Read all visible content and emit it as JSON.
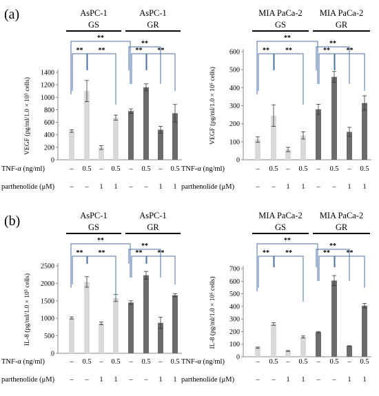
{
  "panels": [
    {
      "letter": "(a)",
      "row_labels": [
        "TNF-α (ng/ml)",
        "parthenolide (μM)"
      ],
      "condition_row1": [
        "–",
        "0.5",
        "–",
        "0.5"
      ],
      "condition_row2": [
        "–",
        "–",
        "1",
        "1"
      ]
    },
    {
      "letter": "(b)",
      "row_labels": [
        "TNF-α (ng/ml)",
        "parthenolide (μM)"
      ],
      "condition_row1": [
        "–",
        "0.5",
        "–",
        "0.5"
      ],
      "condition_row2": [
        "–",
        "–",
        "1",
        "1"
      ]
    }
  ],
  "significance_label": "**",
  "colors": {
    "GS": "#d9d9d9",
    "GR": "#6b6b6b",
    "bracket": "#4a6fa5"
  },
  "chart_data": [
    {
      "type": "bar",
      "panel": "(a)",
      "cell_line_labels": [
        "AsPC-1",
        "AsPC-1"
      ],
      "group_labels": [
        "GS",
        "GR"
      ],
      "ylabel": "VEGF (pg/ml/1.0 × 10⁵ cells)",
      "ylim": [
        0,
        1400
      ],
      "yticks": [
        0,
        200,
        400,
        600,
        800,
        1000,
        1200,
        1400
      ],
      "series": [
        {
          "name": "GS",
          "values": [
            460,
            1100,
            195,
            675
          ],
          "errors": [
            20,
            170,
            30,
            40
          ]
        },
        {
          "name": "GR",
          "values": [
            780,
            1160,
            480,
            745
          ],
          "errors": [
            35,
            55,
            55,
            140
          ]
        }
      ]
    },
    {
      "type": "bar",
      "panel": "(a)",
      "cell_line_labels": [
        "MIA PaCa-2",
        "MIA PaCa-2"
      ],
      "group_labels": [
        "GS",
        "GR"
      ],
      "ylabel": "VEGF (pg/ml/1.0 × 10⁵ cells)",
      "ylim": [
        0,
        600
      ],
      "yticks": [
        0,
        100,
        200,
        300,
        400,
        500,
        600
      ],
      "series": [
        {
          "name": "GS",
          "values": [
            112,
            245,
            57,
            135
          ],
          "errors": [
            15,
            60,
            12,
            20
          ]
        },
        {
          "name": "GR",
          "values": [
            280,
            460,
            155,
            315
          ],
          "errors": [
            28,
            30,
            25,
            40
          ]
        }
      ]
    },
    {
      "type": "bar",
      "panel": "(b)",
      "cell_line_labels": [
        "AsPC-1",
        "AsPC-1"
      ],
      "group_labels": [
        "GS",
        "GR"
      ],
      "ylabel": "IL-8 (pg/ml/1.0 × 10⁵ cells)",
      "ylim": [
        0,
        2500
      ],
      "yticks": [
        0,
        500,
        1000,
        1500,
        2000,
        2500
      ],
      "series": [
        {
          "name": "GS",
          "values": [
            1010,
            2040,
            855,
            1580
          ],
          "errors": [
            30,
            150,
            40,
            100
          ]
        },
        {
          "name": "GR",
          "values": [
            1450,
            2230,
            870,
            1660
          ],
          "errors": [
            50,
            110,
            160,
            40
          ]
        }
      ]
    },
    {
      "type": "bar",
      "panel": "(b)",
      "cell_line_labels": [
        "MIA PaCa-2",
        "MIA PaCa-2"
      ],
      "group_labels": [
        "GS",
        "GR"
      ],
      "ylabel": "IL-8 (pg/ml/1.0 × 10⁵ cells)",
      "ylim": [
        0,
        700
      ],
      "yticks": [
        0,
        100,
        200,
        300,
        400,
        500,
        600,
        700
      ],
      "series": [
        {
          "name": "GS",
          "values": [
            72,
            260,
            46,
            157
          ],
          "errors": [
            5,
            10,
            4,
            8
          ]
        },
        {
          "name": "GR",
          "values": [
            196,
            605,
            85,
            405
          ],
          "errors": [
            5,
            40,
            3,
            18
          ]
        }
      ]
    }
  ]
}
